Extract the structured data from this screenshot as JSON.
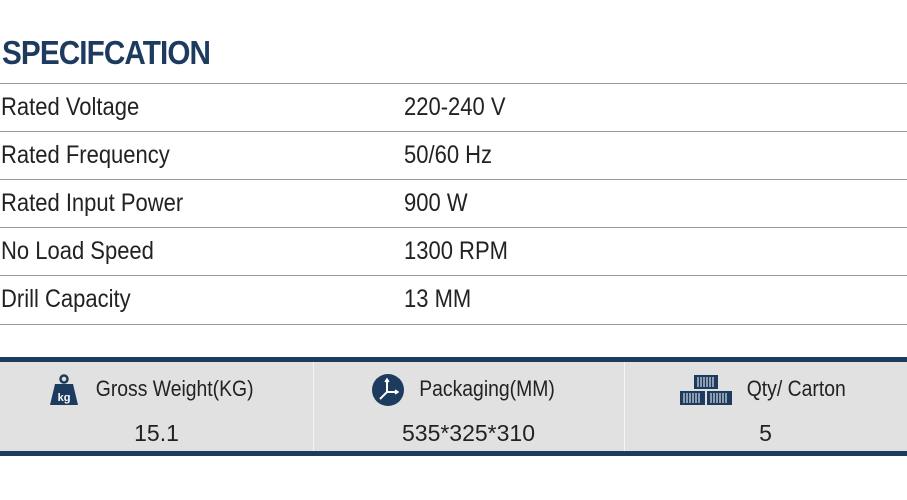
{
  "title": "SPECIFCATION",
  "specs": [
    {
      "label": "Rated Voltage",
      "value": "220-240 V"
    },
    {
      "label": "Rated Frequency",
      "value": "50/60 Hz"
    },
    {
      "label": "Rated Input Power",
      "value": "900 W"
    },
    {
      "label": "No Load Speed",
      "value": "1300 RPM"
    },
    {
      "label": "Drill Capacity",
      "value": "13 MM"
    }
  ],
  "packing": [
    {
      "icon": "weight-kg-icon",
      "label": "Gross Weight(KG)",
      "value": "15.1",
      "icon_text": "kg"
    },
    {
      "icon": "dimensions-axes-icon",
      "label": "Packaging(MM)",
      "value": "535*325*310"
    },
    {
      "icon": "cartons-stack-icon",
      "label": "Qty/ Carton",
      "value": "5"
    }
  ],
  "colors": {
    "accent": "#1d3a5f",
    "panel": "#e1e1e1"
  }
}
